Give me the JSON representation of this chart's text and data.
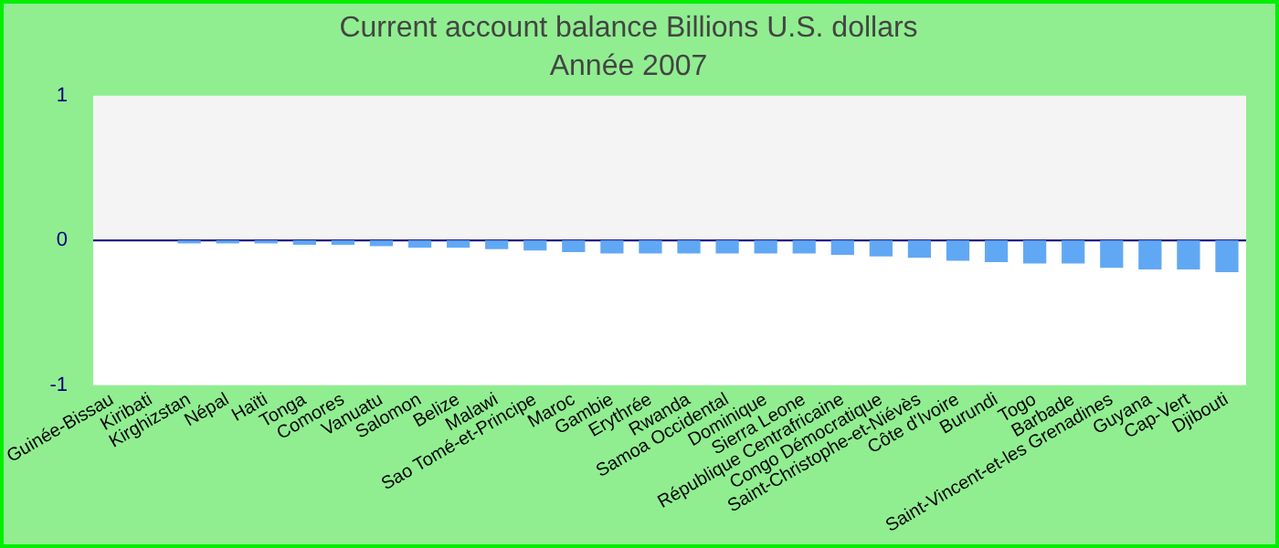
{
  "chart_data": {
    "type": "bar",
    "title": "Current account balance Billions U.S. dollars",
    "subtitle": "Année 2007",
    "categories": [
      "Guinée-Bissau",
      "Kiribati",
      "Kirghizstan",
      "Népal",
      "Haïti",
      "Tonga",
      "Comores",
      "Vanuatu",
      "Salomon",
      "Belize",
      "Malawi",
      "Sao Tomé-et-Principe",
      "Maroc",
      "Gambie",
      "Erythrée",
      "Rwanda",
      "Samoa Occidental",
      "Dominique",
      "Sierra Leone",
      "République Centrafricaine",
      "Congo Démocratique",
      "Saint-Christophe-et-Niévès",
      "Côte d'Ivoire",
      "Burundi",
      "Togo",
      "Barbade",
      "Saint-Vincent-et-les Grenadines",
      "Guyana",
      "Cap-Vert",
      "Djibouti"
    ],
    "values": [
      0,
      0,
      -0.02,
      -0.02,
      -0.02,
      -0.03,
      -0.03,
      -0.04,
      -0.05,
      -0.05,
      -0.06,
      -0.07,
      -0.08,
      -0.09,
      -0.09,
      -0.09,
      -0.09,
      -0.09,
      -0.09,
      -0.1,
      -0.11,
      -0.12,
      -0.14,
      -0.15,
      -0.16,
      -0.16,
      -0.19,
      -0.2,
      -0.2,
      -0.22
    ],
    "color": "#61a8f4",
    "ylim": [
      -1,
      1
    ],
    "yticks": [
      -1,
      0,
      1
    ],
    "grid": false,
    "legend": false,
    "bands": [
      {
        "axis": "y",
        "from": 0,
        "to": 1,
        "color": "#f4f4f4"
      },
      {
        "axis": "y",
        "from": -1,
        "to": 0,
        "color": "#ffffff"
      }
    ],
    "ref_lines": [
      {
        "axis": "y",
        "value": 0,
        "color": "#000080"
      }
    ]
  }
}
